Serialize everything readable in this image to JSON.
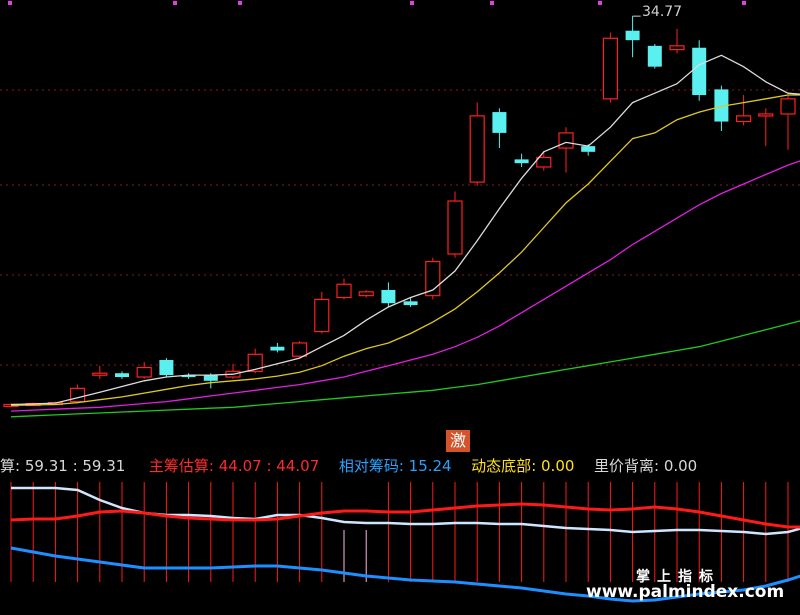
{
  "upper_price_label": "34.77",
  "badge": "激",
  "indicators": [
    {
      "name": "算",
      "sep": ": ",
      "value": "59.31",
      "extra": " : 59.31",
      "color": "#d8d8d8",
      "name_color": "#d8d8d8"
    },
    {
      "name": "主筹估算",
      "sep": ": ",
      "value": "44.07",
      "extra": " : 44.07",
      "color": "#ff2a2a",
      "name_color": "#ff2a2a"
    },
    {
      "name": "相对筹码",
      "sep": ": ",
      "value": "15.24",
      "extra": "",
      "color": "#2aa0ff",
      "name_color": "#2aa0ff"
    },
    {
      "name": "动态底部",
      "sep": ": ",
      "value": "0.00",
      "extra": "",
      "color": "#ffe01a",
      "name_color": "#ffe01a"
    },
    {
      "name": "里价背离",
      "sep": ": ",
      "value": "0.00",
      "extra": "",
      "color": "#d8d8d8",
      "name_color": "#d8d8d8"
    }
  ],
  "watermark": {
    "cn": "掌上指标",
    "url": "www.palmindex.com"
  },
  "colors": {
    "up": "#ff2020",
    "down": "#5bf0f0",
    "ma5": "#dcdcdc",
    "ma10": "#e0c820",
    "ma20": "#e020e0",
    "ma60": "#20c820",
    "grid": "#8b1a1a",
    "lower_white": "#cfe6ff",
    "lower_red": "#ff1a1a",
    "lower_blue": "#1e8fff",
    "pink": "#ffb6e6"
  },
  "chart_data": [
    {
      "type": "candlestick",
      "price_label": "34.77",
      "candles": [
        {
          "o": 14.2,
          "c": 14.25,
          "h": 14.3,
          "l": 14.1,
          "d": "up"
        },
        {
          "o": 14.25,
          "c": 14.3,
          "h": 14.35,
          "l": 14.2,
          "d": "up"
        },
        {
          "o": 14.3,
          "c": 14.35,
          "h": 14.4,
          "l": 14.25,
          "d": "up"
        },
        {
          "o": 14.4,
          "c": 15.1,
          "h": 15.3,
          "l": 14.3,
          "d": "up"
        },
        {
          "o": 15.8,
          "c": 15.9,
          "h": 16.3,
          "l": 15.6,
          "d": "up"
        },
        {
          "o": 15.9,
          "c": 15.7,
          "h": 16.0,
          "l": 15.6,
          "d": "down"
        },
        {
          "o": 15.7,
          "c": 16.2,
          "h": 16.5,
          "l": 15.6,
          "d": "up"
        },
        {
          "o": 16.6,
          "c": 15.8,
          "h": 16.7,
          "l": 15.7,
          "d": "down"
        },
        {
          "o": 15.8,
          "c": 15.7,
          "h": 15.9,
          "l": 15.6,
          "d": "down"
        },
        {
          "o": 15.8,
          "c": 15.5,
          "h": 15.9,
          "l": 15.1,
          "d": "down"
        },
        {
          "o": 15.7,
          "c": 16.0,
          "h": 16.4,
          "l": 15.6,
          "d": "up"
        },
        {
          "o": 16.0,
          "c": 16.9,
          "h": 17.2,
          "l": 15.9,
          "d": "up"
        },
        {
          "o": 17.3,
          "c": 17.1,
          "h": 17.5,
          "l": 17.0,
          "d": "down"
        },
        {
          "o": 16.8,
          "c": 17.5,
          "h": 17.6,
          "l": 16.7,
          "d": "up"
        },
        {
          "o": 18.1,
          "c": 19.8,
          "h": 20.2,
          "l": 18.0,
          "d": "up"
        },
        {
          "o": 19.9,
          "c": 20.6,
          "h": 20.9,
          "l": 19.8,
          "d": "up"
        },
        {
          "o": 20.0,
          "c": 20.2,
          "h": 20.3,
          "l": 19.9,
          "d": "up"
        },
        {
          "o": 20.3,
          "c": 19.6,
          "h": 20.7,
          "l": 19.4,
          "d": "down"
        },
        {
          "o": 19.7,
          "c": 19.5,
          "h": 19.9,
          "l": 19.4,
          "d": "down"
        },
        {
          "o": 20.0,
          "c": 21.8,
          "h": 22.0,
          "l": 19.8,
          "d": "up"
        },
        {
          "o": 22.2,
          "c": 25.0,
          "h": 25.5,
          "l": 22.0,
          "d": "up"
        },
        {
          "o": 26.0,
          "c": 29.5,
          "h": 30.2,
          "l": 25.8,
          "d": "up"
        },
        {
          "o": 29.7,
          "c": 28.6,
          "h": 29.9,
          "l": 27.8,
          "d": "down"
        },
        {
          "o": 27.2,
          "c": 27.0,
          "h": 27.5,
          "l": 26.8,
          "d": "down"
        },
        {
          "o": 26.8,
          "c": 27.3,
          "h": 27.6,
          "l": 26.6,
          "d": "up"
        },
        {
          "o": 27.8,
          "c": 28.6,
          "h": 28.9,
          "l": 26.5,
          "d": "up"
        },
        {
          "o": 27.9,
          "c": 27.6,
          "h": 28.0,
          "l": 27.4,
          "d": "down"
        },
        {
          "o": 30.4,
          "c": 33.6,
          "h": 33.9,
          "l": 30.2,
          "d": "up"
        },
        {
          "o": 34.0,
          "c": 33.5,
          "h": 34.77,
          "l": 32.6,
          "d": "down"
        },
        {
          "o": 33.2,
          "c": 32.1,
          "h": 33.3,
          "l": 32.0,
          "d": "down"
        },
        {
          "o": 33.0,
          "c": 33.2,
          "h": 34.1,
          "l": 32.8,
          "d": "up"
        },
        {
          "o": 33.1,
          "c": 30.6,
          "h": 33.5,
          "l": 30.3,
          "d": "down"
        },
        {
          "o": 30.9,
          "c": 29.2,
          "h": 31.1,
          "l": 28.7,
          "d": "down"
        },
        {
          "o": 29.2,
          "c": 29.5,
          "h": 30.6,
          "l": 29.0,
          "d": "up"
        },
        {
          "o": 29.6,
          "c": 29.6,
          "h": 29.9,
          "l": 27.9,
          "d": "up"
        },
        {
          "o": 29.6,
          "c": 30.4,
          "h": 30.6,
          "l": 27.7,
          "d": "up"
        },
        {
          "o": 30.2,
          "c": 29.3,
          "h": 31.0,
          "l": 29.0,
          "d": "down"
        }
      ],
      "ma5": [
        14.25,
        14.28,
        14.32,
        14.6,
        14.9,
        15.2,
        15.5,
        15.7,
        15.8,
        15.8,
        15.85,
        16.1,
        16.4,
        16.7,
        17.3,
        17.9,
        18.7,
        19.4,
        19.9,
        20.3,
        21.3,
        22.9,
        24.6,
        26.2,
        27.6,
        28.1,
        27.9,
        28.9,
        30.2,
        30.7,
        31.2,
        32.2,
        32.7,
        32.1,
        31.3,
        30.7,
        30.6
      ],
      "ma10": [
        14.2,
        14.22,
        14.25,
        14.35,
        14.5,
        14.65,
        14.85,
        15.05,
        15.25,
        15.4,
        15.5,
        15.6,
        15.75,
        15.95,
        16.3,
        16.8,
        17.2,
        17.5,
        18.0,
        18.6,
        19.3,
        20.2,
        21.2,
        22.3,
        23.6,
        24.9,
        25.9,
        27.1,
        28.3,
        28.6,
        29.3,
        29.7,
        30.0,
        30.2,
        30.4,
        30.6,
        30.6
      ],
      "ma20": [
        13.9,
        13.95,
        14.0,
        14.05,
        14.1,
        14.2,
        14.3,
        14.4,
        14.55,
        14.7,
        14.85,
        15.0,
        15.15,
        15.3,
        15.5,
        15.7,
        16.0,
        16.3,
        16.6,
        16.9,
        17.3,
        17.8,
        18.4,
        19.1,
        19.8,
        20.5,
        21.2,
        21.9,
        22.7,
        23.4,
        24.1,
        24.8,
        25.4,
        25.9,
        26.4,
        26.9,
        27.3
      ],
      "ma60": [
        13.6,
        13.65,
        13.7,
        13.75,
        13.8,
        13.85,
        13.9,
        13.95,
        14.0,
        14.05,
        14.1,
        14.2,
        14.3,
        14.4,
        14.5,
        14.6,
        14.7,
        14.8,
        14.9,
        15.0,
        15.15,
        15.3,
        15.5,
        15.7,
        15.9,
        16.1,
        16.3,
        16.5,
        16.7,
        16.9,
        17.1,
        17.3,
        17.6,
        17.9,
        18.2,
        18.5,
        18.8
      ]
    },
    {
      "type": "line",
      "series": [
        {
          "name": "算",
          "values": [
            59.31
          ]
        },
        {
          "name": "主筹估算",
          "values": [
            44.07
          ]
        },
        {
          "name": "相对筹码",
          "values": [
            15.24
          ]
        },
        {
          "name": "动态底部",
          "values": [
            0.0
          ]
        },
        {
          "name": "里价背离",
          "values": [
            0.0
          ]
        }
      ]
    }
  ]
}
